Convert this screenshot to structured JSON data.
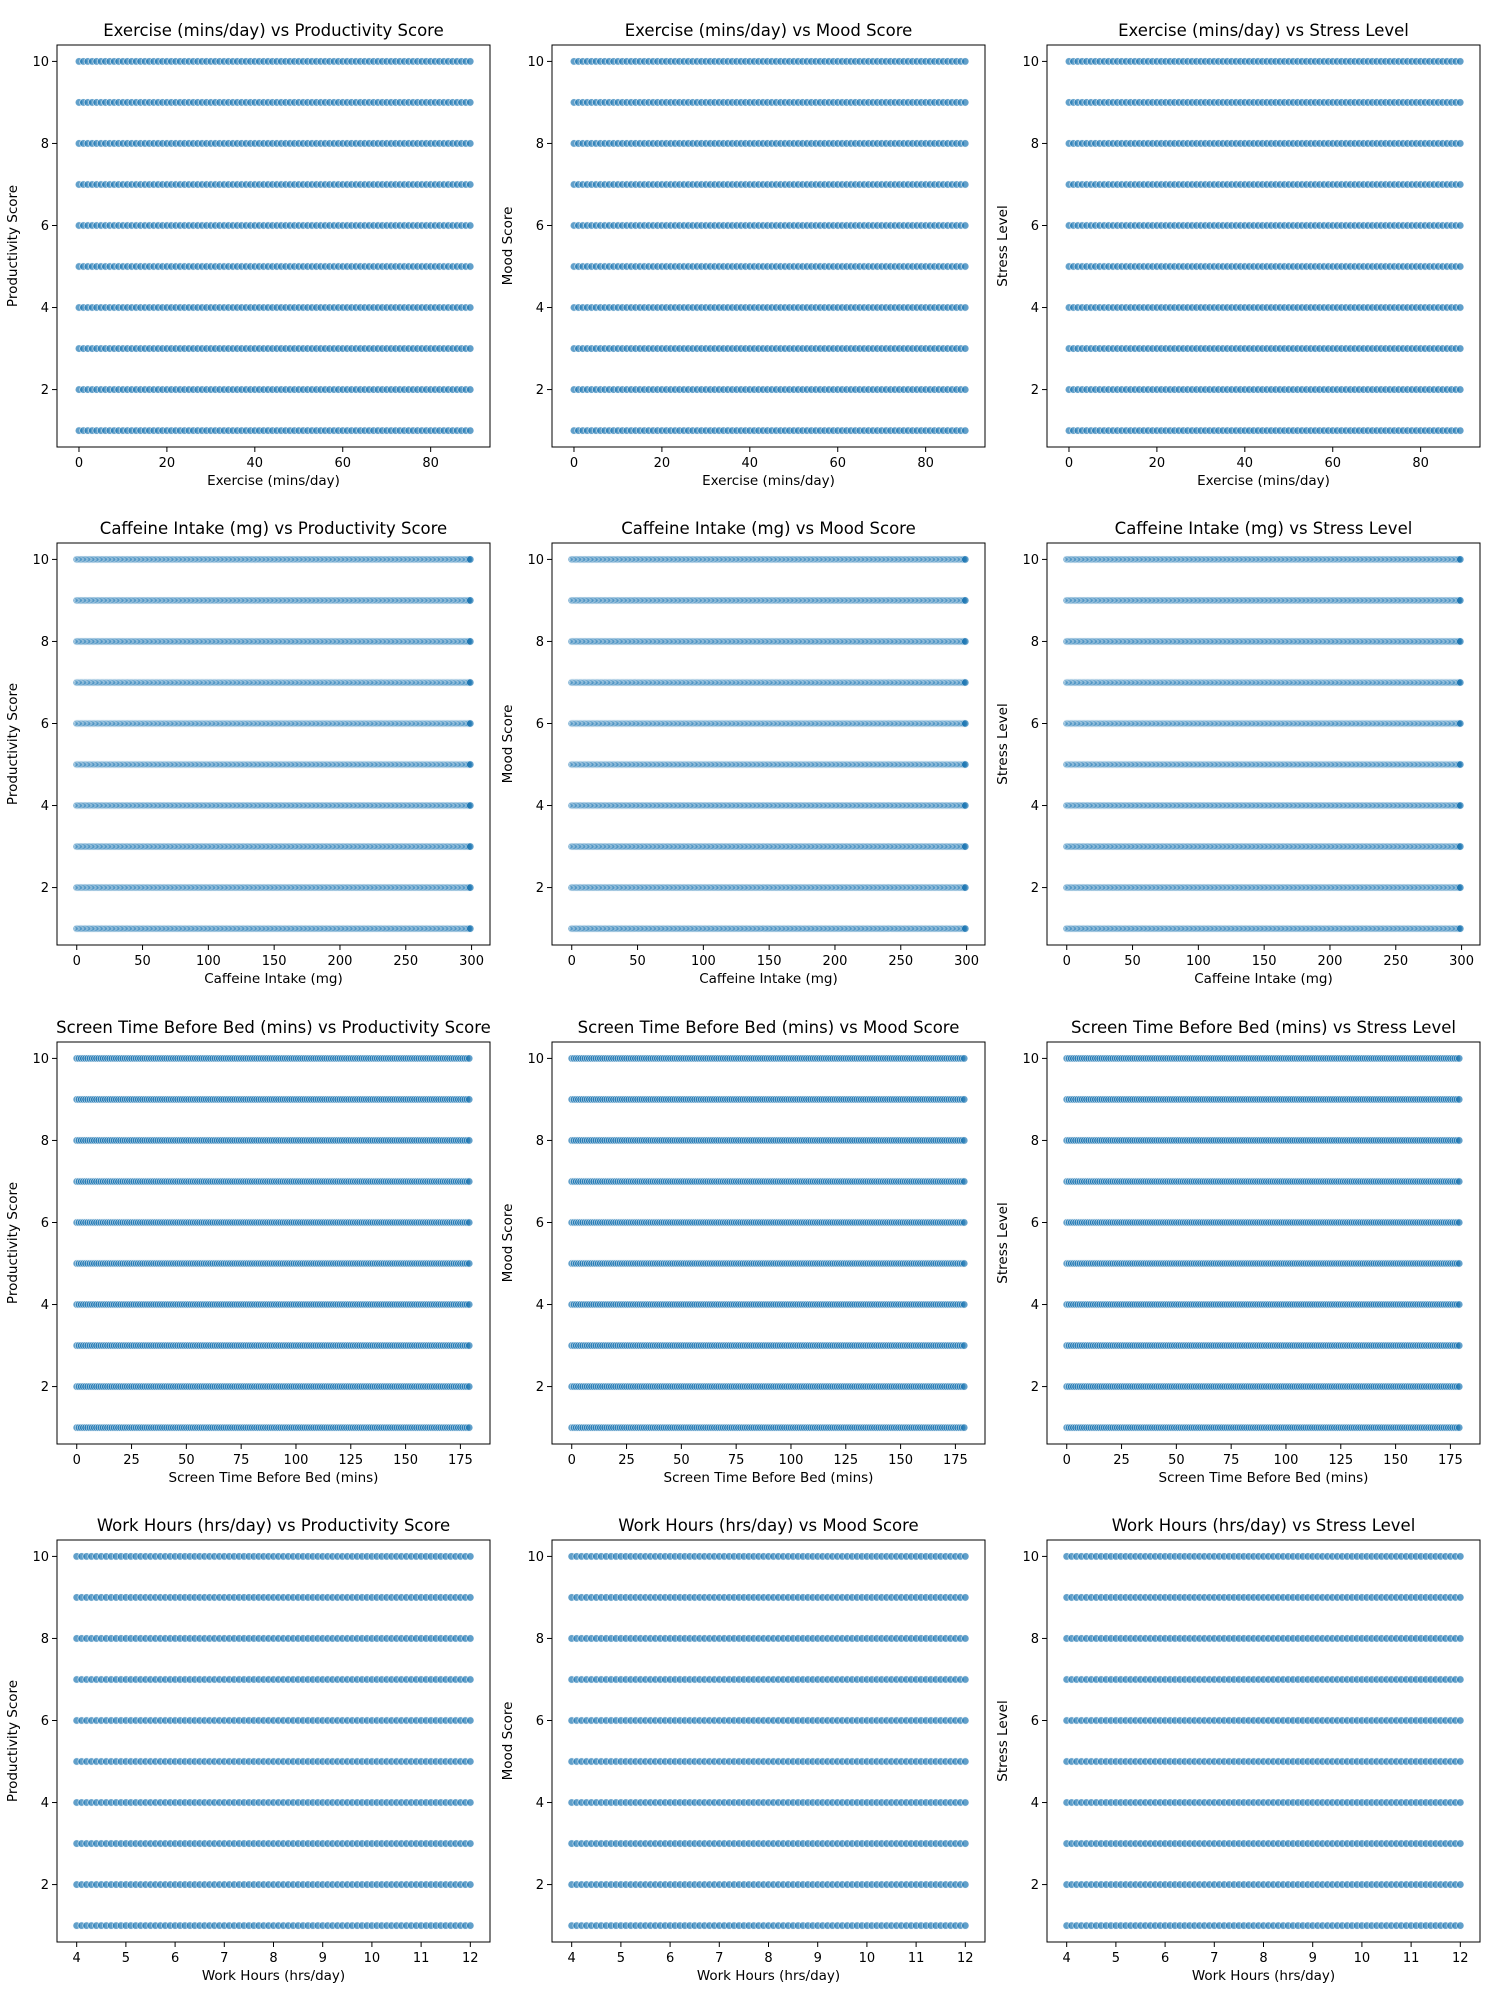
{
  "figure": {
    "point_color": "#1f77b4",
    "point_edge_color": "#ffffff",
    "point_alpha": 0.7,
    "background": "#ffffff"
  },
  "chart_data": [
    {
      "type": "scatter",
      "title": "Exercise (mins/day) vs Productivity Score",
      "xlabel": "Exercise (mins/day)",
      "ylabel": "Productivity Score",
      "xlim": [
        -5,
        93.5
      ],
      "ylim": [
        0.6,
        10.4
      ],
      "xticks": [
        0,
        20,
        40,
        60,
        80
      ],
      "yticks": [
        2,
        4,
        6,
        8,
        10
      ],
      "x_values": {
        "min": 0,
        "max": 89,
        "step": 1
      },
      "y_values": [
        1,
        2,
        3,
        4,
        5,
        6,
        7,
        8,
        9,
        10
      ]
    },
    {
      "type": "scatter",
      "title": "Exercise (mins/day) vs Mood Score",
      "xlabel": "Exercise (mins/day)",
      "ylabel": "Mood Score",
      "xlim": [
        -5,
        93.5
      ],
      "ylim": [
        0.6,
        10.4
      ],
      "xticks": [
        0,
        20,
        40,
        60,
        80
      ],
      "yticks": [
        2,
        4,
        6,
        8,
        10
      ],
      "x_values": {
        "min": 0,
        "max": 89,
        "step": 1
      },
      "y_values": [
        1,
        2,
        3,
        4,
        5,
        6,
        7,
        8,
        9,
        10
      ]
    },
    {
      "type": "scatter",
      "title": "Exercise (mins/day) vs Stress Level",
      "xlabel": "Exercise (mins/day)",
      "ylabel": "Stress Level",
      "xlim": [
        -5,
        93.5
      ],
      "ylim": [
        0.6,
        10.4
      ],
      "xticks": [
        0,
        20,
        40,
        60,
        80
      ],
      "yticks": [
        2,
        4,
        6,
        8,
        10
      ],
      "x_values": {
        "min": 0,
        "max": 89,
        "step": 1
      },
      "y_values": [
        1,
        2,
        3,
        4,
        5,
        6,
        7,
        8,
        9,
        10
      ]
    },
    {
      "type": "scatter",
      "title": "Caffeine Intake (mg) vs Productivity Score",
      "xlabel": "Caffeine Intake (mg)",
      "ylabel": "Productivity Score",
      "xlim": [
        -15,
        314
      ],
      "ylim": [
        0.6,
        10.4
      ],
      "xticks": [
        0,
        50,
        100,
        150,
        200,
        250,
        300
      ],
      "yticks": [
        2,
        4,
        6,
        8,
        10
      ],
      "x_values": {
        "min": 0,
        "max": 299,
        "step": 1
      },
      "y_values": [
        1,
        2,
        3,
        4,
        5,
        6,
        7,
        8,
        9,
        10
      ]
    },
    {
      "type": "scatter",
      "title": "Caffeine Intake (mg) vs Mood Score",
      "xlabel": "Caffeine Intake (mg)",
      "ylabel": "Mood Score",
      "xlim": [
        -15,
        314
      ],
      "ylim": [
        0.6,
        10.4
      ],
      "xticks": [
        0,
        50,
        100,
        150,
        200,
        250,
        300
      ],
      "yticks": [
        2,
        4,
        6,
        8,
        10
      ],
      "x_values": {
        "min": 0,
        "max": 299,
        "step": 1
      },
      "y_values": [
        1,
        2,
        3,
        4,
        5,
        6,
        7,
        8,
        9,
        10
      ]
    },
    {
      "type": "scatter",
      "title": "Caffeine Intake (mg) vs Stress Level",
      "xlabel": "Caffeine Intake (mg)",
      "ylabel": "Stress Level",
      "xlim": [
        -15,
        314
      ],
      "ylim": [
        0.6,
        10.4
      ],
      "xticks": [
        0,
        50,
        100,
        150,
        200,
        250,
        300
      ],
      "yticks": [
        2,
        4,
        6,
        8,
        10
      ],
      "x_values": {
        "min": 0,
        "max": 299,
        "step": 1
      },
      "y_values": [
        1,
        2,
        3,
        4,
        5,
        6,
        7,
        8,
        9,
        10
      ]
    },
    {
      "type": "scatter",
      "title": "Screen Time Before Bed (mins) vs Productivity Score",
      "xlabel": "Screen Time Before Bed (mins)",
      "ylabel": "Productivity Score",
      "xlim": [
        -9,
        188.5
      ],
      "ylim": [
        0.6,
        10.4
      ],
      "xticks": [
        0,
        25,
        50,
        75,
        100,
        125,
        150,
        175
      ],
      "yticks": [
        2,
        4,
        6,
        8,
        10
      ],
      "x_values": {
        "min": 0,
        "max": 179,
        "step": 1
      },
      "y_values": [
        1,
        2,
        3,
        4,
        5,
        6,
        7,
        8,
        9,
        10
      ]
    },
    {
      "type": "scatter",
      "title": "Screen Time Before Bed (mins) vs Mood Score",
      "xlabel": "Screen Time Before Bed (mins)",
      "ylabel": "Mood Score",
      "xlim": [
        -9,
        188.5
      ],
      "ylim": [
        0.6,
        10.4
      ],
      "xticks": [
        0,
        25,
        50,
        75,
        100,
        125,
        150,
        175
      ],
      "yticks": [
        2,
        4,
        6,
        8,
        10
      ],
      "x_values": {
        "min": 0,
        "max": 179,
        "step": 1
      },
      "y_values": [
        1,
        2,
        3,
        4,
        5,
        6,
        7,
        8,
        9,
        10
      ]
    },
    {
      "type": "scatter",
      "title": "Screen Time Before Bed (mins) vs Stress Level",
      "xlabel": "Screen Time Before Bed (mins)",
      "ylabel": "Stress Level",
      "xlim": [
        -9,
        188.5
      ],
      "ylim": [
        0.6,
        10.4
      ],
      "xticks": [
        0,
        25,
        50,
        75,
        100,
        125,
        150,
        175
      ],
      "yticks": [
        2,
        4,
        6,
        8,
        10
      ],
      "x_values": {
        "min": 0,
        "max": 179,
        "step": 1
      },
      "y_values": [
        1,
        2,
        3,
        4,
        5,
        6,
        7,
        8,
        9,
        10
      ]
    },
    {
      "type": "scatter",
      "title": "Work Hours (hrs/day) vs Productivity Score",
      "xlabel": "Work Hours (hrs/day)",
      "ylabel": "Productivity Score",
      "xlim": [
        3.6,
        12.4
      ],
      "ylim": [
        0.6,
        10.4
      ],
      "xticks": [
        4,
        5,
        6,
        7,
        8,
        9,
        10,
        11,
        12
      ],
      "yticks": [
        2,
        4,
        6,
        8,
        10
      ],
      "x_values": {
        "min": 4,
        "max": 12,
        "step": 0.1
      },
      "y_values": [
        1,
        2,
        3,
        4,
        5,
        6,
        7,
        8,
        9,
        10
      ]
    },
    {
      "type": "scatter",
      "title": "Work Hours (hrs/day) vs Mood Score",
      "xlabel": "Work Hours (hrs/day)",
      "ylabel": "Mood Score",
      "xlim": [
        3.6,
        12.4
      ],
      "ylim": [
        0.6,
        10.4
      ],
      "xticks": [
        4,
        5,
        6,
        7,
        8,
        9,
        10,
        11,
        12
      ],
      "yticks": [
        2,
        4,
        6,
        8,
        10
      ],
      "x_values": {
        "min": 4,
        "max": 12,
        "step": 0.1
      },
      "y_values": [
        1,
        2,
        3,
        4,
        5,
        6,
        7,
        8,
        9,
        10
      ]
    },
    {
      "type": "scatter",
      "title": "Work Hours (hrs/day) vs Stress Level",
      "xlabel": "Work Hours (hrs/day)",
      "ylabel": "Stress Level",
      "xlim": [
        3.6,
        12.4
      ],
      "ylim": [
        0.6,
        10.4
      ],
      "xticks": [
        4,
        5,
        6,
        7,
        8,
        9,
        10,
        11,
        12
      ],
      "yticks": [
        2,
        4,
        6,
        8,
        10
      ],
      "x_values": {
        "min": 4,
        "max": 12,
        "step": 0.1
      },
      "y_values": [
        1,
        2,
        3,
        4,
        5,
        6,
        7,
        8,
        9,
        10
      ]
    }
  ]
}
